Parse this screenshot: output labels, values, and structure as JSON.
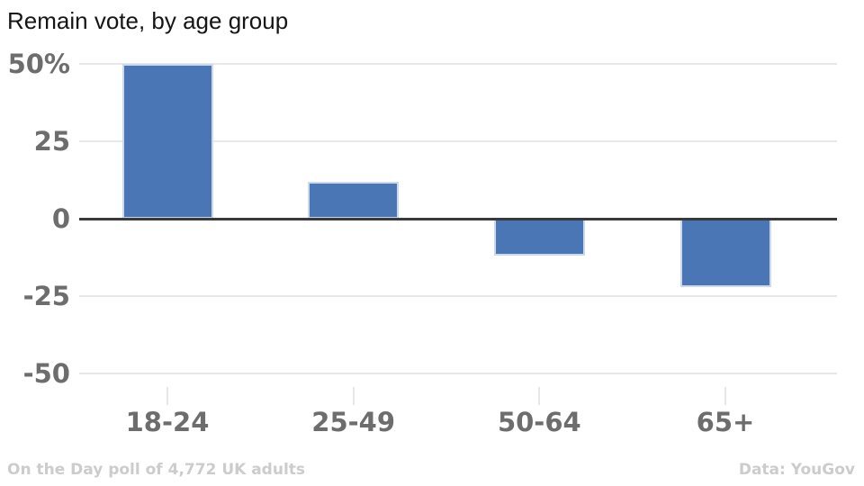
{
  "chart_data": {
    "type": "bar",
    "title": "Remain vote, by age group",
    "categories": [
      "18-24",
      "25-49",
      "50-64",
      "65+"
    ],
    "values": [
      50,
      12,
      -12,
      -22
    ],
    "xlabel": "",
    "ylabel": "",
    "ylim": [
      -50,
      50
    ],
    "yticks": [
      {
        "value": 50,
        "label": "50%"
      },
      {
        "value": 25,
        "label": "25"
      },
      {
        "value": 0,
        "label": "0"
      },
      {
        "value": -25,
        "label": "-25"
      },
      {
        "value": -50,
        "label": "-50"
      }
    ],
    "grid": true,
    "legend": false,
    "series_color": "#4a76b5"
  },
  "footer": {
    "left": "On the Day poll of 4,772 UK adults",
    "right": "Data: YouGov"
  },
  "colors": {
    "bar": "#4a76b5",
    "bar_border": "#ccd9eb",
    "grid": "#e7e7e7",
    "zero_line": "#3a3a3a",
    "axis_text": "#6d6d6d",
    "footer_text": "#cccccc",
    "title_text": "#151515"
  }
}
